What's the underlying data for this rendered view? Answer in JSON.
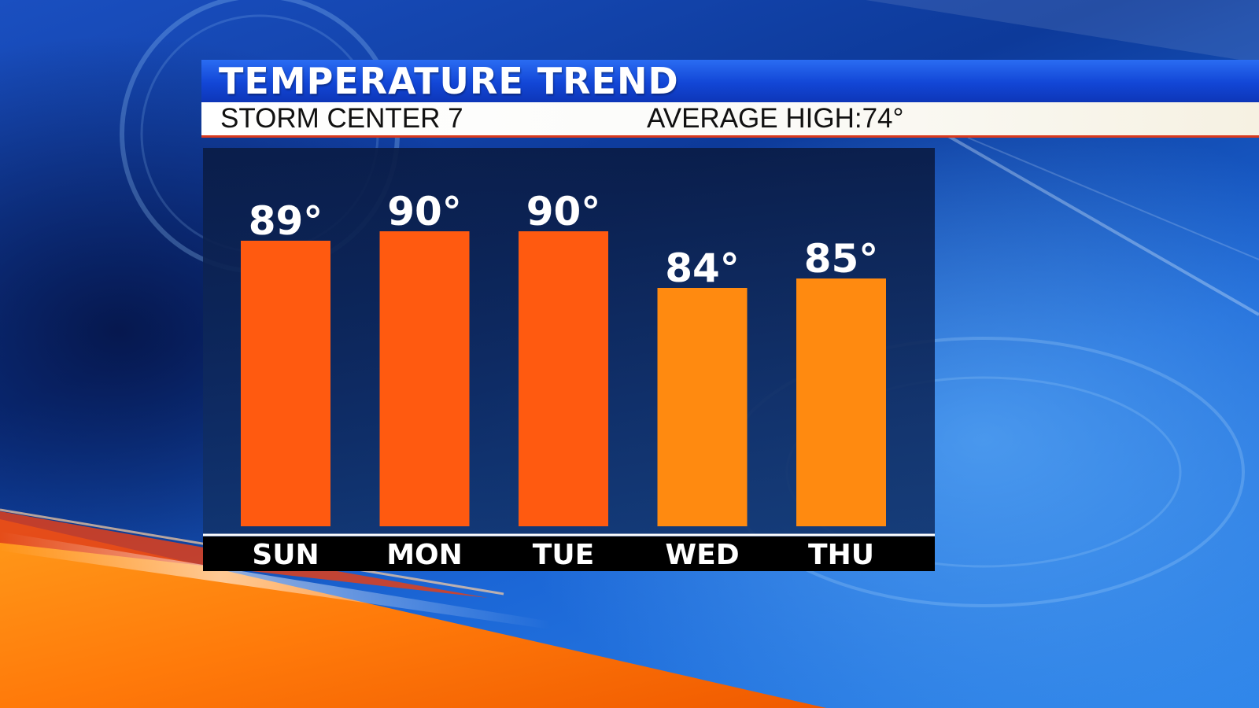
{
  "header": {
    "title": "TEMPERATURE TREND",
    "station": "STORM CENTER 7",
    "average_high_label": "AVERAGE HIGH:",
    "average_high_value": "74°"
  },
  "colors": {
    "hot_bar": "#ff5a10",
    "warm_bar": "#ff8a10",
    "title_blue": "#1246d6",
    "accent_red": "#d93a1e"
  },
  "chart_data": {
    "type": "bar",
    "title": "TEMPERATURE TREND",
    "categories": [
      "SUN",
      "MON",
      "TUE",
      "WED",
      "THU"
    ],
    "values": [
      89,
      90,
      90,
      84,
      85
    ],
    "data_labels": [
      "89°",
      "90°",
      "90°",
      "84°",
      "85°"
    ],
    "bar_colors": [
      "#ff5a10",
      "#ff5a10",
      "#ff5a10",
      "#ff8a10",
      "#ff8a10"
    ],
    "xlabel": "",
    "ylabel": "",
    "grid": false,
    "legend": "none"
  }
}
